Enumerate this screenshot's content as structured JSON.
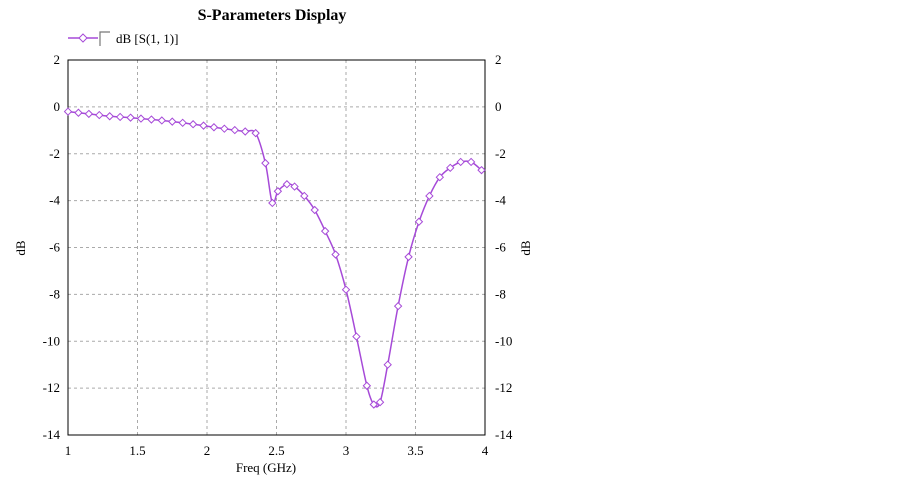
{
  "chart_data": {
    "type": "line",
    "title": "S-Parameters Display",
    "xlabel": "Freq (GHz)",
    "ylabel": "dB",
    "ylabel_right": "dB",
    "xlim": [
      1,
      4
    ],
    "ylim": [
      -14,
      2
    ],
    "x_ticks": [
      "1",
      "1.5",
      "2",
      "2.5",
      "3",
      "3.5",
      "4"
    ],
    "y_ticks": [
      "2",
      "0",
      "-2",
      "-4",
      "-6",
      "-8",
      "-10",
      "-12",
      "-14"
    ],
    "grid": true,
    "legend": "top-left",
    "series": [
      {
        "name": "dB [S(1, 1)]",
        "color": "#a64ad8",
        "marker": "diamond",
        "x": [
          1.0,
          1.075,
          1.15,
          1.225,
          1.3,
          1.375,
          1.45,
          1.525,
          1.6,
          1.675,
          1.75,
          1.825,
          1.9,
          1.975,
          2.05,
          2.125,
          2.2,
          2.275,
          2.35,
          2.42,
          2.47,
          2.51,
          2.575,
          2.63,
          2.7,
          2.775,
          2.85,
          2.925,
          3.0,
          3.075,
          3.15,
          3.2,
          3.245,
          3.3,
          3.375,
          3.45,
          3.525,
          3.6,
          3.675,
          3.75,
          3.825,
          3.9,
          3.975
        ],
        "y": [
          -0.2,
          -0.25,
          -0.3,
          -0.35,
          -0.4,
          -0.43,
          -0.46,
          -0.5,
          -0.54,
          -0.58,
          -0.63,
          -0.68,
          -0.74,
          -0.8,
          -0.87,
          -0.93,
          -0.99,
          -1.05,
          -1.12,
          -2.4,
          -4.1,
          -3.6,
          -3.3,
          -3.4,
          -3.8,
          -4.4,
          -5.3,
          -6.3,
          -7.8,
          -9.8,
          -11.9,
          -12.7,
          -12.6,
          -11.0,
          -8.5,
          -6.4,
          -4.9,
          -3.8,
          -3.0,
          -2.6,
          -2.35,
          -2.35,
          -2.7
        ]
      }
    ]
  }
}
